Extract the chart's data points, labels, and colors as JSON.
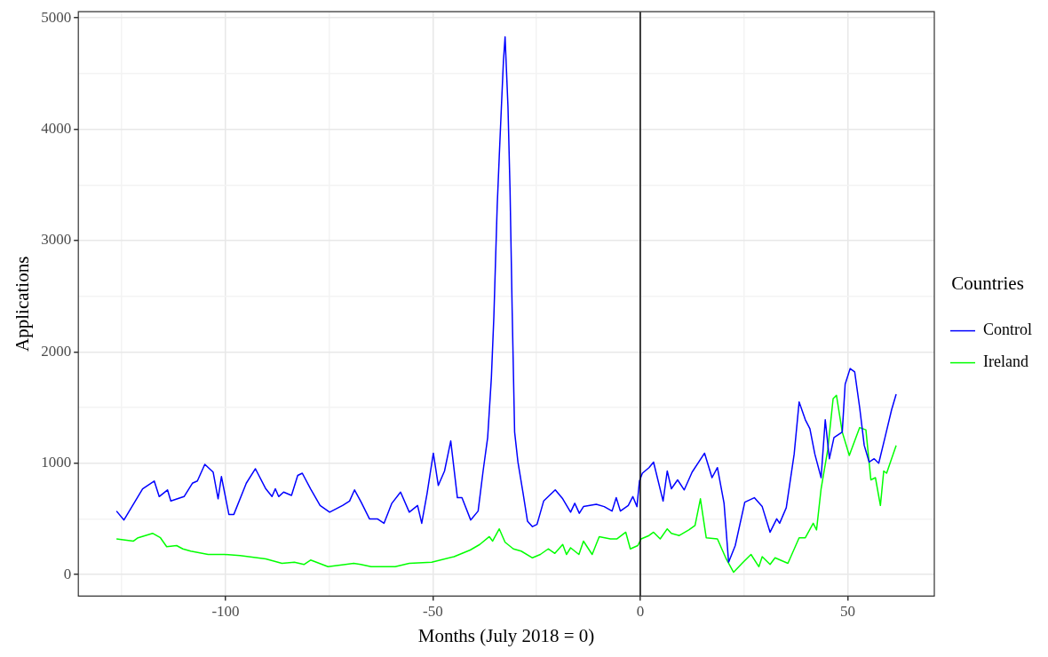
{
  "chart_data": {
    "type": "line",
    "xlabel": "Months (July 2018 = 0)",
    "ylabel": "Applications",
    "legend_title": "Countries",
    "legend": "right",
    "grid": true,
    "marker": "none",
    "line_style": "solid",
    "xlim": [
      -135.5,
      70.9
    ],
    "ylim": [
      -194,
      5056
    ],
    "xticks": [
      {
        "value": -125,
        "label": null
      },
      -100,
      {
        "value": -75,
        "label": null
      },
      -50,
      {
        "value": -25,
        "label": null
      },
      0,
      {
        "value": 25,
        "label": null
      },
      50
    ],
    "yticks": [
      0,
      {
        "value": 500,
        "label": null
      },
      1000,
      {
        "value": 1500,
        "label": null
      },
      2000,
      {
        "value": 2500,
        "label": null
      },
      3000,
      {
        "value": 3500,
        "label": null
      },
      4000,
      {
        "value": 4500,
        "label": null
      },
      5000
    ],
    "ref_lines": [
      {
        "axis": "x",
        "value": 0,
        "color": "#000000"
      }
    ],
    "series": [
      {
        "name": "Control",
        "color": "#0000ff",
        "x": [
          -126.3,
          -124.5,
          -120,
          -117.2,
          -116,
          -114,
          -113.2,
          -110,
          -108,
          -106.8,
          -105,
          -103,
          -101.8,
          -101,
          -99.2,
          -98,
          -95,
          -92.8,
          -90.3,
          -88.8,
          -88,
          -87.2,
          -86,
          -84.1,
          -82.6,
          -81.5,
          -79.5,
          -77.2,
          -74.9,
          -71.8,
          -70.1,
          -68.9,
          -67.3,
          -65.3,
          -63.4,
          -61.8,
          -59.9,
          -57.8,
          -55.7,
          -53.7,
          -52.7,
          -51.4,
          -49.9,
          -48.7,
          -47.2,
          -45.7,
          -44.1,
          -43,
          -40.9,
          -39.1,
          -37.9,
          -36.8,
          -35.9,
          -35.3,
          -34.9,
          -34.5,
          -34,
          -33.5,
          -33,
          -32.6,
          -31.9,
          -31.4,
          -30.9,
          -30.3,
          -29.5,
          -28.3,
          -27.2,
          -26,
          -24.9,
          -23.3,
          -20.5,
          -18.7,
          -16.8,
          -15.8,
          -14.7,
          -13.7,
          -10.6,
          -8.7,
          -6.8,
          -5.8,
          -4.8,
          -2.9,
          -1.8,
          -0.8,
          -0.2,
          0.5,
          2.1,
          3.2,
          5.5,
          6.5,
          7.5,
          9,
          10.6,
          12.5,
          15.5,
          17.3,
          18.6,
          20.2,
          21.3,
          22.9,
          25.2,
          27.5,
          29.4,
          31.3,
          32.9,
          33.6,
          35.2,
          37.1,
          38.3,
          39.8,
          40.9,
          42.1,
          43.6,
          44.6,
          45.6,
          46.7,
          48.7,
          49.4,
          50.6,
          51.7,
          52.9,
          54,
          55.2,
          56.4,
          57.5,
          59,
          60.6,
          61.7
        ],
        "values": [
          570,
          490,
          770,
          840,
          700,
          760,
          660,
          700,
          820,
          840,
          990,
          920,
          680,
          880,
          540,
          540,
          820,
          950,
          770,
          700,
          770,
          700,
          740,
          710,
          890,
          910,
          770,
          620,
          560,
          620,
          660,
          760,
          650,
          500,
          500,
          460,
          640,
          740,
          560,
          620,
          460,
          730,
          1090,
          800,
          930,
          1200,
          690,
          690,
          490,
          570,
          930,
          1230,
          1770,
          2320,
          2820,
          3310,
          3760,
          4190,
          4610,
          4830,
          4200,
          3450,
          2390,
          1280,
          1010,
          740,
          480,
          430,
          450,
          660,
          760,
          680,
          560,
          640,
          550,
          610,
          630,
          610,
          570,
          690,
          570,
          620,
          700,
          610,
          840,
          910,
          960,
          1010,
          660,
          930,
          770,
          850,
          760,
          920,
          1090,
          870,
          960,
          640,
          110,
          260,
          650,
          690,
          610,
          380,
          500,
          460,
          600,
          1080,
          1550,
          1390,
          1310,
          1080,
          870,
          1390,
          1040,
          1230,
          1280,
          1710,
          1850,
          1820,
          1500,
          1160,
          1010,
          1040,
          1000,
          1230,
          1480,
          1620
        ]
      },
      {
        "name": "Ireland",
        "color": "#00ff00",
        "x": [
          -126.3,
          -122.2,
          -121.1,
          -117.6,
          -115.7,
          -114.2,
          -111.8,
          -110.3,
          -108.4,
          -104.2,
          -100.3,
          -96.5,
          -90.3,
          -86.4,
          -83.4,
          -81.1,
          -79.5,
          -75.3,
          -71.1,
          -69.1,
          -67.4,
          -64.9,
          -59.1,
          -55.7,
          -50.3,
          -44.9,
          -41,
          -38.7,
          -36.4,
          -35.6,
          -34,
          -32.6,
          -30.6,
          -28.7,
          -26,
          -24.1,
          -22.2,
          -20.6,
          -18.7,
          -17.8,
          -16.8,
          -14.8,
          -13.7,
          -11.6,
          -9.9,
          -7.2,
          -5.6,
          -3.5,
          -2.4,
          -0.6,
          0.2,
          2.1,
          3.2,
          4.8,
          6.5,
          7.5,
          9.4,
          11.7,
          13.2,
          14.5,
          15.9,
          18.6,
          20.6,
          22.5,
          24.8,
          26.7,
          28.6,
          29.4,
          31.3,
          32.5,
          35.6,
          38.3,
          39.8,
          41.7,
          42.5,
          43.6,
          45.2,
          46.5,
          47.3,
          48.7,
          50.4,
          52.9,
          54.4,
          55.6,
          56.7,
          57.9,
          58.7,
          59.4,
          61.7
        ],
        "values": [
          320,
          300,
          330,
          370,
          330,
          250,
          260,
          230,
          210,
          180,
          180,
          170,
          140,
          100,
          110,
          90,
          130,
          70,
          90,
          100,
          90,
          70,
          70,
          100,
          110,
          160,
          220,
          270,
          340,
          300,
          410,
          290,
          230,
          210,
          150,
          180,
          230,
          190,
          270,
          180,
          240,
          180,
          300,
          180,
          340,
          320,
          320,
          380,
          230,
          260,
          320,
          350,
          380,
          320,
          410,
          370,
          350,
          400,
          440,
          680,
          330,
          320,
          150,
          20,
          110,
          180,
          70,
          160,
          90,
          150,
          100,
          330,
          330,
          460,
          400,
          770,
          1120,
          1580,
          1610,
          1280,
          1070,
          1320,
          1300,
          850,
          870,
          620,
          930,
          910,
          1160
        ]
      }
    ]
  }
}
